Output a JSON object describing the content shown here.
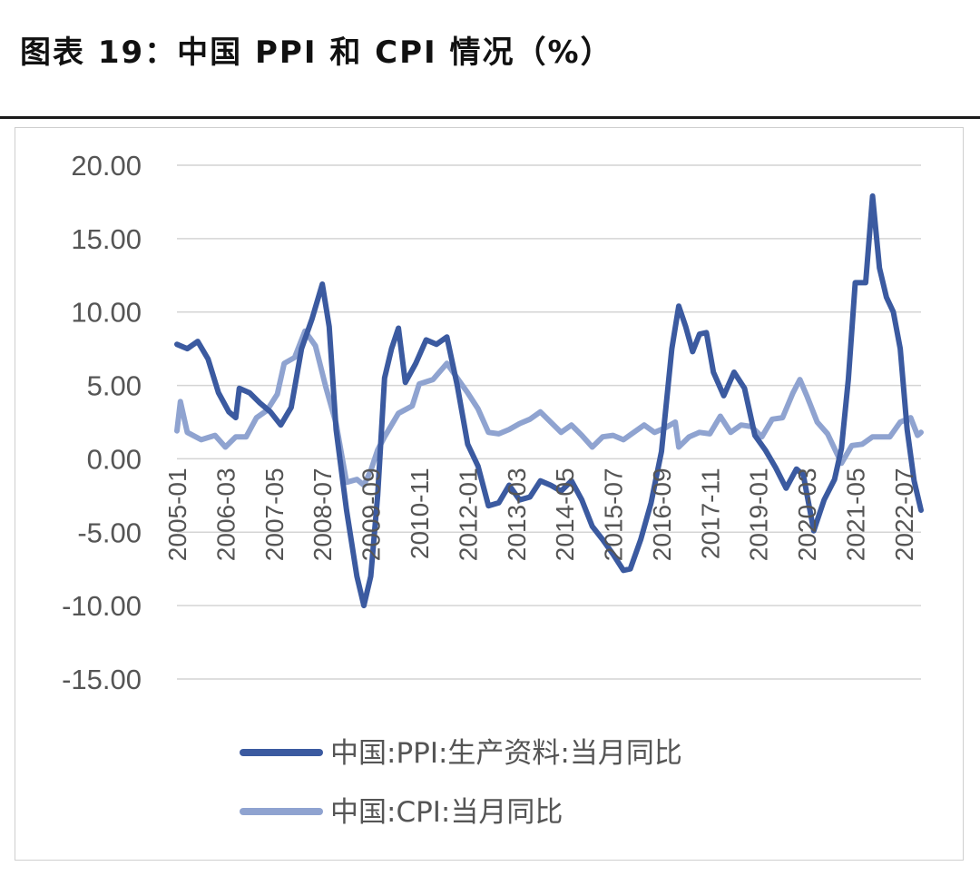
{
  "title": "图表 19：中国 PPI 和 CPI 情况（%）",
  "chart_data": {
    "type": "line",
    "ylim": [
      -15,
      20
    ],
    "yticks": [
      20,
      15,
      10,
      5,
      0,
      -5,
      -10,
      -15
    ],
    "ytick_labels": [
      "20.00",
      "15.00",
      "10.00",
      "5.00",
      "0.00",
      "-5.00",
      "-10.00",
      "-15.00"
    ],
    "xlim": [
      "2005-01",
      "2022-12"
    ],
    "xtick_labels": [
      "2005-01",
      "2006-03",
      "2007-05",
      "2008-07",
      "2009-09",
      "2010-11",
      "2012-01",
      "2013-03",
      "2014-05",
      "2015-07",
      "2016-09",
      "2017-11",
      "2019-01",
      "2020-03",
      "2021-05",
      "2022-07"
    ],
    "grid": true,
    "legend_position": "bottom",
    "colors": {
      "ppi": "#3b5aa0",
      "cpi": "#8fa3d0"
    },
    "series": [
      {
        "name": "中国:PPI:生产资料:当月同比",
        "points": [
          [
            "2005-01",
            7.8
          ],
          [
            "2005-04",
            7.5
          ],
          [
            "2005-07",
            8.0
          ],
          [
            "2005-10",
            6.8
          ],
          [
            "2006-01",
            4.5
          ],
          [
            "2006-04",
            3.2
          ],
          [
            "2006-06",
            2.8
          ],
          [
            "2006-07",
            4.8
          ],
          [
            "2006-10",
            4.5
          ],
          [
            "2007-01",
            3.8
          ],
          [
            "2007-04",
            3.2
          ],
          [
            "2007-07",
            2.3
          ],
          [
            "2007-10",
            3.5
          ],
          [
            "2008-01",
            7.5
          ],
          [
            "2008-04",
            9.5
          ],
          [
            "2008-07",
            11.9
          ],
          [
            "2008-09",
            9.0
          ],
          [
            "2008-11",
            2.0
          ],
          [
            "2009-02",
            -3.5
          ],
          [
            "2009-05",
            -8.0
          ],
          [
            "2009-07",
            -10.0
          ],
          [
            "2009-09",
            -8.0
          ],
          [
            "2009-11",
            -2.5
          ],
          [
            "2010-01",
            5.5
          ],
          [
            "2010-03",
            7.5
          ],
          [
            "2010-05",
            8.9
          ],
          [
            "2010-07",
            5.2
          ],
          [
            "2010-10",
            6.5
          ],
          [
            "2011-01",
            8.1
          ],
          [
            "2011-04",
            7.8
          ],
          [
            "2011-07",
            8.3
          ],
          [
            "2011-10",
            5.0
          ],
          [
            "2012-01",
            1.0
          ],
          [
            "2012-04",
            -0.5
          ],
          [
            "2012-07",
            -3.2
          ],
          [
            "2012-10",
            -3.0
          ],
          [
            "2013-01",
            -1.8
          ],
          [
            "2013-04",
            -2.8
          ],
          [
            "2013-07",
            -2.6
          ],
          [
            "2013-10",
            -1.5
          ],
          [
            "2014-01",
            -1.8
          ],
          [
            "2014-04",
            -2.2
          ],
          [
            "2014-07",
            -1.5
          ],
          [
            "2014-10",
            -2.8
          ],
          [
            "2015-01",
            -4.6
          ],
          [
            "2015-04",
            -5.5
          ],
          [
            "2015-07",
            -6.5
          ],
          [
            "2015-10",
            -7.6
          ],
          [
            "2015-12",
            -7.5
          ],
          [
            "2016-03",
            -5.5
          ],
          [
            "2016-06",
            -3.0
          ],
          [
            "2016-09",
            0.5
          ],
          [
            "2016-12",
            7.5
          ],
          [
            "2017-02",
            10.4
          ],
          [
            "2017-04",
            9.0
          ],
          [
            "2017-06",
            7.3
          ],
          [
            "2017-08",
            8.5
          ],
          [
            "2017-10",
            8.6
          ],
          [
            "2017-12",
            5.9
          ],
          [
            "2018-03",
            4.3
          ],
          [
            "2018-06",
            5.9
          ],
          [
            "2018-09",
            4.8
          ],
          [
            "2018-12",
            1.6
          ],
          [
            "2019-03",
            0.6
          ],
          [
            "2019-06",
            -0.6
          ],
          [
            "2019-09",
            -2.0
          ],
          [
            "2019-12",
            -0.7
          ],
          [
            "2020-02",
            -1.1
          ],
          [
            "2020-05",
            -4.9
          ],
          [
            "2020-08",
            -2.8
          ],
          [
            "2020-11",
            -1.4
          ],
          [
            "2021-01",
            0.7
          ],
          [
            "2021-03",
            5.4
          ],
          [
            "2021-05",
            12.0
          ],
          [
            "2021-08",
            12.0
          ],
          [
            "2021-10",
            17.9
          ],
          [
            "2021-12",
            13.0
          ],
          [
            "2022-02",
            11.0
          ],
          [
            "2022-04",
            10.0
          ],
          [
            "2022-06",
            7.5
          ],
          [
            "2022-08",
            2.0
          ],
          [
            "2022-10",
            -1.5
          ],
          [
            "2022-12",
            -3.5
          ]
        ]
      },
      {
        "name": "中国:CPI:当月同比",
        "points": [
          [
            "2005-01",
            1.9
          ],
          [
            "2005-02",
            3.9
          ],
          [
            "2005-04",
            1.8
          ],
          [
            "2005-08",
            1.3
          ],
          [
            "2005-12",
            1.6
          ],
          [
            "2006-03",
            0.8
          ],
          [
            "2006-06",
            1.5
          ],
          [
            "2006-09",
            1.5
          ],
          [
            "2006-12",
            2.8
          ],
          [
            "2007-03",
            3.3
          ],
          [
            "2007-06",
            4.4
          ],
          [
            "2007-08",
            6.5
          ],
          [
            "2007-11",
            6.9
          ],
          [
            "2008-02",
            8.7
          ],
          [
            "2008-05",
            7.7
          ],
          [
            "2008-08",
            4.9
          ],
          [
            "2008-11",
            2.4
          ],
          [
            "2009-02",
            -1.6
          ],
          [
            "2009-05",
            -1.4
          ],
          [
            "2009-07",
            -1.8
          ],
          [
            "2009-09",
            -0.8
          ],
          [
            "2009-11",
            0.6
          ],
          [
            "2010-01",
            1.5
          ],
          [
            "2010-05",
            3.1
          ],
          [
            "2010-09",
            3.6
          ],
          [
            "2010-11",
            5.1
          ],
          [
            "2011-03",
            5.4
          ],
          [
            "2011-07",
            6.5
          ],
          [
            "2011-10",
            5.5
          ],
          [
            "2012-01",
            4.5
          ],
          [
            "2012-04",
            3.4
          ],
          [
            "2012-07",
            1.8
          ],
          [
            "2012-10",
            1.7
          ],
          [
            "2013-01",
            2.0
          ],
          [
            "2013-04",
            2.4
          ],
          [
            "2013-07",
            2.7
          ],
          [
            "2013-10",
            3.2
          ],
          [
            "2014-01",
            2.5
          ],
          [
            "2014-04",
            1.8
          ],
          [
            "2014-07",
            2.3
          ],
          [
            "2014-10",
            1.6
          ],
          [
            "2015-01",
            0.8
          ],
          [
            "2015-04",
            1.5
          ],
          [
            "2015-07",
            1.6
          ],
          [
            "2015-10",
            1.3
          ],
          [
            "2016-01",
            1.8
          ],
          [
            "2016-04",
            2.3
          ],
          [
            "2016-07",
            1.8
          ],
          [
            "2016-10",
            2.1
          ],
          [
            "2017-01",
            2.5
          ],
          [
            "2017-02",
            0.8
          ],
          [
            "2017-05",
            1.5
          ],
          [
            "2017-08",
            1.8
          ],
          [
            "2017-11",
            1.7
          ],
          [
            "2018-02",
            2.9
          ],
          [
            "2018-05",
            1.8
          ],
          [
            "2018-08",
            2.3
          ],
          [
            "2018-11",
            2.2
          ],
          [
            "2019-02",
            1.5
          ],
          [
            "2019-05",
            2.7
          ],
          [
            "2019-08",
            2.8
          ],
          [
            "2019-11",
            4.5
          ],
          [
            "2020-01",
            5.4
          ],
          [
            "2020-03",
            4.3
          ],
          [
            "2020-06",
            2.5
          ],
          [
            "2020-09",
            1.7
          ],
          [
            "2020-12",
            0.2
          ],
          [
            "2021-01",
            -0.3
          ],
          [
            "2021-04",
            0.9
          ],
          [
            "2021-07",
            1.0
          ],
          [
            "2021-10",
            1.5
          ],
          [
            "2021-12",
            1.5
          ],
          [
            "2022-03",
            1.5
          ],
          [
            "2022-06",
            2.5
          ],
          [
            "2022-09",
            2.8
          ],
          [
            "2022-11",
            1.6
          ],
          [
            "2022-12",
            1.8
          ]
        ]
      }
    ]
  }
}
